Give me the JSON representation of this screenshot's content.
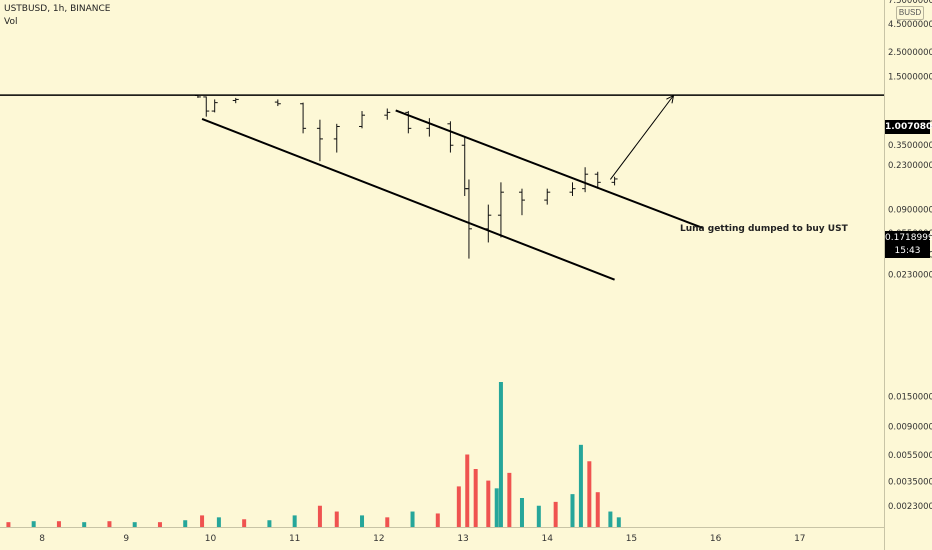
{
  "header": {
    "symbol_line": "USTBUSD, 1h, BINANCE",
    "volume_label": "Vol"
  },
  "price_axis": {
    "currency": "BUSD",
    "labels": [
      "7.50000000",
      "4.50000000",
      "2.50000000",
      "1.50000000",
      "0.55000000",
      "0.35000000",
      "0.23000000",
      "0.09000000",
      "0.05500000",
      "0.03500000",
      "0.02300000",
      "0.01500000",
      "0.00900000",
      "0.00550000",
      "0.00350000",
      "0.00230000"
    ]
  },
  "tags": {
    "level": {
      "value": "1.00708041",
      "bg": "#000000",
      "fg": "#ffffff"
    },
    "last": {
      "value": "0.17189996",
      "countdown": "15:43",
      "bg": "#000000",
      "fg": "#ffffff"
    }
  },
  "time_axis": {
    "labels": [
      "8",
      "9",
      "10",
      "11",
      "12",
      "13",
      "14",
      "15",
      "16",
      "17"
    ]
  },
  "annotation": "Luna getting dumped to buy UST",
  "colors": {
    "up": "#26a69a",
    "down": "#ef5350",
    "background": "#fdf8d6",
    "drawing": "#000000"
  },
  "chart_data": {
    "type": "candlestick",
    "symbol": "USTBUSD",
    "interval": "1h",
    "exchange": "BINANCE",
    "y_scale": "log",
    "ylim": [
      0.0018,
      7.5
    ],
    "x_axis": "day of month",
    "xlim": [
      7.5,
      18.0
    ],
    "horizontal_level": 1.00708041,
    "last_price": 0.17189996,
    "candles": [
      {
        "day": 9.85,
        "open": 1.0,
        "high": 1.0,
        "low": 0.95,
        "close": 0.97
      },
      {
        "day": 9.95,
        "open": 0.97,
        "high": 0.98,
        "low": 0.64,
        "close": 0.72
      },
      {
        "day": 10.05,
        "open": 0.72,
        "high": 0.92,
        "low": 0.7,
        "close": 0.86
      },
      {
        "day": 10.3,
        "open": 0.9,
        "high": 0.95,
        "low": 0.85,
        "close": 0.92
      },
      {
        "day": 10.8,
        "open": 0.87,
        "high": 0.92,
        "low": 0.8,
        "close": 0.84
      },
      {
        "day": 11.1,
        "open": 0.84,
        "high": 0.86,
        "low": 0.45,
        "close": 0.5
      },
      {
        "day": 11.3,
        "open": 0.5,
        "high": 0.6,
        "low": 0.25,
        "close": 0.4
      },
      {
        "day": 11.5,
        "open": 0.4,
        "high": 0.55,
        "low": 0.3,
        "close": 0.52
      },
      {
        "day": 11.8,
        "open": 0.52,
        "high": 0.72,
        "low": 0.5,
        "close": 0.66
      },
      {
        "day": 12.1,
        "open": 0.66,
        "high": 0.76,
        "low": 0.6,
        "close": 0.7
      },
      {
        "day": 12.35,
        "open": 0.7,
        "high": 0.72,
        "low": 0.45,
        "close": 0.5
      },
      {
        "day": 12.6,
        "open": 0.5,
        "high": 0.62,
        "low": 0.42,
        "close": 0.55
      },
      {
        "day": 12.85,
        "open": 0.55,
        "high": 0.58,
        "low": 0.3,
        "close": 0.35
      },
      {
        "day": 13.02,
        "open": 0.35,
        "high": 0.42,
        "low": 0.12,
        "close": 0.14
      },
      {
        "day": 13.07,
        "open": 0.14,
        "high": 0.17,
        "low": 0.032,
        "close": 0.06
      },
      {
        "day": 13.3,
        "open": 0.06,
        "high": 0.1,
        "low": 0.045,
        "close": 0.08
      },
      {
        "day": 13.45,
        "open": 0.08,
        "high": 0.16,
        "low": 0.05,
        "close": 0.13
      },
      {
        "day": 13.7,
        "open": 0.13,
        "high": 0.14,
        "low": 0.08,
        "close": 0.11
      },
      {
        "day": 14.0,
        "open": 0.11,
        "high": 0.14,
        "low": 0.1,
        "close": 0.13
      },
      {
        "day": 14.3,
        "open": 0.13,
        "high": 0.16,
        "low": 0.12,
        "close": 0.14
      },
      {
        "day": 14.45,
        "open": 0.14,
        "high": 0.22,
        "low": 0.13,
        "close": 0.19
      },
      {
        "day": 14.6,
        "open": 0.19,
        "high": 0.2,
        "low": 0.14,
        "close": 0.16
      },
      {
        "day": 14.8,
        "open": 0.16,
        "high": 0.18,
        "low": 0.15,
        "close": 0.17189996
      }
    ],
    "volume": {
      "y_scale": "linear",
      "bars": [
        {
          "day": 7.6,
          "value": 5,
          "dir": "down"
        },
        {
          "day": 7.9,
          "value": 6,
          "dir": "up"
        },
        {
          "day": 8.2,
          "value": 6,
          "dir": "down"
        },
        {
          "day": 8.5,
          "value": 5,
          "dir": "up"
        },
        {
          "day": 8.8,
          "value": 6,
          "dir": "down"
        },
        {
          "day": 9.1,
          "value": 5,
          "dir": "up"
        },
        {
          "day": 9.4,
          "value": 5,
          "dir": "down"
        },
        {
          "day": 9.7,
          "value": 7,
          "dir": "up"
        },
        {
          "day": 9.9,
          "value": 12,
          "dir": "down"
        },
        {
          "day": 10.1,
          "value": 10,
          "dir": "up"
        },
        {
          "day": 10.4,
          "value": 8,
          "dir": "down"
        },
        {
          "day": 10.7,
          "value": 7,
          "dir": "up"
        },
        {
          "day": 11.0,
          "value": 12,
          "dir": "up"
        },
        {
          "day": 11.3,
          "value": 22,
          "dir": "down"
        },
        {
          "day": 11.5,
          "value": 16,
          "dir": "down"
        },
        {
          "day": 11.8,
          "value": 12,
          "dir": "up"
        },
        {
          "day": 12.1,
          "value": 10,
          "dir": "down"
        },
        {
          "day": 12.4,
          "value": 16,
          "dir": "up"
        },
        {
          "day": 12.7,
          "value": 14,
          "dir": "down"
        },
        {
          "day": 12.95,
          "value": 42,
          "dir": "down"
        },
        {
          "day": 13.05,
          "value": 75,
          "dir": "down"
        },
        {
          "day": 13.15,
          "value": 60,
          "dir": "down"
        },
        {
          "day": 13.3,
          "value": 48,
          "dir": "down"
        },
        {
          "day": 13.4,
          "value": 40,
          "dir": "up"
        },
        {
          "day": 13.45,
          "value": 150,
          "dir": "up"
        },
        {
          "day": 13.55,
          "value": 56,
          "dir": "down"
        },
        {
          "day": 13.7,
          "value": 30,
          "dir": "up"
        },
        {
          "day": 13.9,
          "value": 22,
          "dir": "up"
        },
        {
          "day": 14.1,
          "value": 26,
          "dir": "down"
        },
        {
          "day": 14.3,
          "value": 34,
          "dir": "up"
        },
        {
          "day": 14.4,
          "value": 85,
          "dir": "up"
        },
        {
          "day": 14.5,
          "value": 68,
          "dir": "down"
        },
        {
          "day": 14.6,
          "value": 36,
          "dir": "down"
        },
        {
          "day": 14.75,
          "value": 16,
          "dir": "up"
        },
        {
          "day": 14.85,
          "value": 10,
          "dir": "up"
        }
      ]
    },
    "trend_lines": [
      {
        "name": "lower-channel",
        "from": {
          "day": 9.9,
          "price": 0.61
        },
        "to": {
          "day": 14.8,
          "price": 0.0205
        }
      },
      {
        "name": "upper-channel",
        "from": {
          "day": 12.2,
          "price": 0.73
        },
        "to": {
          "day": 15.85,
          "price": 0.061
        }
      },
      {
        "name": "breakout-arrow",
        "from": {
          "day": 14.75,
          "price": 0.17
        },
        "to": {
          "day": 15.5,
          "price": 1.0
        }
      }
    ]
  }
}
